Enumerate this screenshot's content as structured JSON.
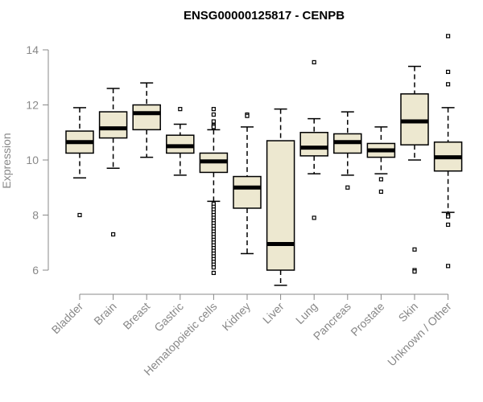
{
  "chart_data": {
    "type": "boxplot",
    "title": "ENSG00000125817 - CENPB",
    "xlabel": "",
    "ylabel": "Expression",
    "ylim": [
      5.2,
      14.8
    ],
    "yticks": [
      6,
      8,
      10,
      12,
      14
    ],
    "box_fill": "#ede8d0",
    "categories": [
      "Bladder",
      "Brain",
      "Breast",
      "Gastric",
      "Hematopoietic cells",
      "Kidney",
      "Liver",
      "Lung",
      "Pancreas",
      "Prostate",
      "Skin",
      "Unknown / Other"
    ],
    "boxes": [
      {
        "whisker_low": 9.35,
        "q1": 10.25,
        "median": 10.65,
        "q3": 11.05,
        "whisker_high": 11.9,
        "outliers": [
          8.0
        ]
      },
      {
        "whisker_low": 9.7,
        "q1": 10.8,
        "median": 11.15,
        "q3": 11.75,
        "whisker_high": 12.6,
        "outliers": [
          7.3
        ]
      },
      {
        "whisker_low": 10.1,
        "q1": 11.1,
        "median": 11.7,
        "q3": 12.0,
        "whisker_high": 12.8,
        "outliers": []
      },
      {
        "whisker_low": 9.45,
        "q1": 10.25,
        "median": 10.5,
        "q3": 10.9,
        "whisker_high": 11.3,
        "outliers": [
          11.85
        ]
      },
      {
        "whisker_low": 8.5,
        "q1": 9.55,
        "median": 9.95,
        "q3": 10.25,
        "whisker_high": 11.1,
        "outliers": [
          11.85,
          11.65,
          11.4,
          11.25,
          11.2,
          8.4,
          8.3,
          8.2,
          8.1,
          8.0,
          7.9,
          7.8,
          7.7,
          7.6,
          7.5,
          7.4,
          7.3,
          7.2,
          7.1,
          7.0,
          6.9,
          6.8,
          6.7,
          6.6,
          6.5,
          6.4,
          6.3,
          6.2,
          6.1,
          5.9
        ]
      },
      {
        "whisker_low": 6.6,
        "q1": 8.25,
        "median": 9.0,
        "q3": 9.4,
        "whisker_high": 11.2,
        "outliers": [
          11.65,
          11.6
        ]
      },
      {
        "whisker_low": 5.45,
        "q1": 6.0,
        "median": 6.95,
        "q3": 10.7,
        "whisker_high": 11.85,
        "outliers": []
      },
      {
        "whisker_low": 9.5,
        "q1": 10.15,
        "median": 10.45,
        "q3": 11.0,
        "whisker_high": 11.5,
        "outliers": [
          13.55,
          7.9
        ]
      },
      {
        "whisker_low": 9.45,
        "q1": 10.25,
        "median": 10.65,
        "q3": 10.95,
        "whisker_high": 11.75,
        "outliers": [
          9.0
        ]
      },
      {
        "whisker_low": 9.5,
        "q1": 10.1,
        "median": 10.35,
        "q3": 10.6,
        "whisker_high": 11.2,
        "outliers": [
          9.3,
          8.85
        ]
      },
      {
        "whisker_low": 10.0,
        "q1": 10.55,
        "median": 11.4,
        "q3": 12.4,
        "whisker_high": 13.4,
        "outliers": [
          6.75,
          6.0,
          5.95
        ]
      },
      {
        "whisker_low": 8.1,
        "q1": 9.6,
        "median": 10.1,
        "q3": 10.65,
        "whisker_high": 11.9,
        "outliers": [
          14.5,
          13.2,
          12.75,
          8.0,
          7.95,
          7.65,
          6.15
        ]
      }
    ]
  }
}
